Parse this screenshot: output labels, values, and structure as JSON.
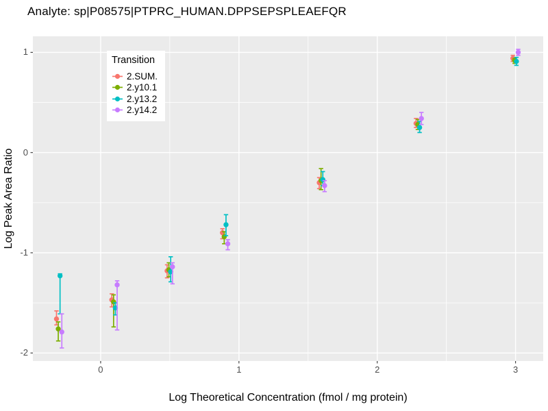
{
  "page": {
    "title": "Analyte: sp|P08575|PTPRC_HUMAN.DPPSEPSPLEAEFQR"
  },
  "chart_data": {
    "type": "scatter",
    "subtype": "pointrange-with-errorbars",
    "title": "Analyte: sp|P08575|PTPRC_HUMAN.DPPSEPSPLEAEFQR",
    "xlabel": "Log Theoretical Concentration (fmol / mg protein)",
    "ylabel": "Log Peak Area Ratio",
    "xlim": [
      -0.49,
      3.2
    ],
    "ylim": [
      -2.08,
      1.16
    ],
    "xticks": [
      0,
      1,
      2,
      3
    ],
    "yticks": [
      -2,
      -1,
      0,
      1
    ],
    "xminor": [
      0.5,
      1.5,
      2.5
    ],
    "yminor": [
      -1.5,
      -0.5,
      0.5
    ],
    "grid": "major and minor gridlines on",
    "panel_bg": "#EBEBEB",
    "grid_color": "#FFFFFF",
    "tick_color": "#333333",
    "tick_label_color": "#4D4D4D",
    "legend": {
      "title": "Transition",
      "position": "inside-top-left",
      "bg": "#FFFFFF"
    },
    "x": [
      -0.3,
      0.1,
      0.5,
      0.9,
      1.6,
      2.3,
      3
    ],
    "series": [
      {
        "name": "2.SUM.",
        "color": "#F8766D",
        "y": [
          -1.66,
          -1.47,
          -1.18,
          -0.8,
          -0.3,
          0.29,
          0.94
        ],
        "lo": [
          -1.72,
          -1.54,
          -1.25,
          -0.86,
          -0.36,
          0.25,
          0.91
        ],
        "hi": [
          -1.58,
          -1.41,
          -1.12,
          -0.76,
          -0.25,
          0.34,
          0.97
        ]
      },
      {
        "name": "2.y10.1",
        "color": "#7CAE00",
        "y": [
          -1.76,
          -1.49,
          -1.17,
          -0.84,
          -0.28,
          0.28,
          0.92
        ],
        "lo": [
          -1.88,
          -1.74,
          -1.24,
          -0.91,
          -0.37,
          0.23,
          0.89
        ],
        "hi": [
          -1.69,
          -1.42,
          -1.1,
          -0.79,
          -0.16,
          0.33,
          0.94
        ]
      },
      {
        "name": "2.y13.2",
        "color": "#00BFC4",
        "y": [
          -1.23,
          -1.55,
          -1.19,
          -0.72,
          -0.27,
          0.25,
          0.91
        ],
        "lo": [
          -1.61,
          -1.62,
          -1.29,
          -0.83,
          -0.33,
          0.2,
          0.87
        ],
        "hi": [
          -1.21,
          -1.5,
          -1.04,
          -0.62,
          -0.19,
          0.31,
          0.95
        ]
      },
      {
        "name": "2.y14.2",
        "color": "#C77CFF",
        "y": [
          -1.79,
          -1.32,
          -1.14,
          -0.91,
          -0.33,
          0.34,
          1.0
        ],
        "lo": [
          -1.95,
          -1.77,
          -1.31,
          -0.97,
          -0.39,
          0.28,
          0.97
        ],
        "hi": [
          -1.61,
          -1.28,
          -1.1,
          -0.87,
          -0.28,
          0.4,
          1.03
        ]
      }
    ]
  }
}
